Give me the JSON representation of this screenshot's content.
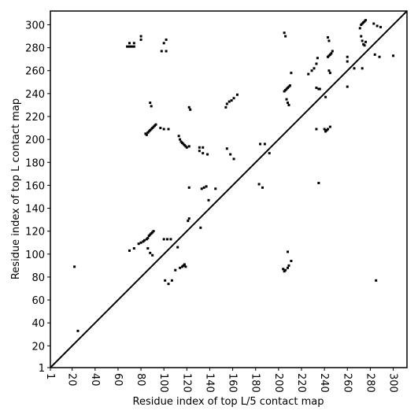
{
  "chart_data": {
    "type": "scatter",
    "x_label": "Residue index of top L/5 contact map",
    "y_label": "Residue index of top L contact map",
    "xlim": [
      1,
      312
    ],
    "ylim": [
      1,
      312
    ],
    "xticks": [
      1,
      20,
      40,
      60,
      80,
      100,
      120,
      140,
      160,
      180,
      200,
      220,
      240,
      260,
      280,
      300
    ],
    "yticks": [
      1,
      20,
      40,
      60,
      80,
      100,
      120,
      140,
      160,
      180,
      200,
      220,
      240,
      260,
      280,
      300
    ],
    "series": [
      {
        "color": "#000000",
        "x": [
          22,
          25,
          68,
          70,
          72,
          74,
          70,
          74,
          80,
          80,
          100,
          102,
          98,
          102,
          88,
          89,
          84,
          85,
          86,
          87,
          88,
          89,
          90,
          91,
          92,
          93,
          97,
          100,
          104,
          113,
          114,
          115,
          116,
          117,
          118,
          119,
          120,
          122,
          122,
          123,
          131,
          131,
          134,
          134,
          138,
          154,
          155,
          157,
          159,
          161,
          164,
          155,
          158,
          161,
          133,
          135,
          137,
          145,
          122,
          139,
          121,
          122,
          132,
          70,
          74,
          78,
          80,
          82,
          83,
          85,
          86,
          87,
          88,
          89,
          90,
          91,
          86,
          88,
          90,
          100,
          103,
          106,
          101,
          104,
          107,
          112,
          110,
          114,
          116,
          117,
          118,
          119,
          183,
          186,
          184,
          188,
          192,
          205,
          206,
          207,
          208,
          209,
          210,
          207,
          208,
          209,
          211,
          205,
          206,
          204,
          205,
          206,
          208,
          209,
          208,
          211,
          226,
          229,
          231,
          233,
          234,
          233,
          235,
          236,
          233,
          235,
          240,
          241,
          242,
          243,
          245,
          241,
          243,
          244,
          245,
          246,
          247,
          244,
          245,
          243,
          244,
          260,
          260,
          260,
          266,
          271,
          272,
          273,
          274,
          275,
          276,
          272,
          273,
          274,
          275,
          276,
          273,
          283,
          286,
          289,
          284,
          288,
          300,
          285
        ],
        "y": [
          89,
          33,
          281,
          281,
          281,
          281,
          284,
          284,
          287,
          290,
          284,
          287,
          277,
          277,
          232,
          229,
          205,
          204,
          206,
          207,
          208,
          209,
          210,
          211,
          212,
          213,
          210,
          209,
          209,
          203,
          200,
          198,
          197,
          196,
          195,
          194,
          193,
          194,
          228,
          226,
          193,
          190,
          188,
          193,
          187,
          228,
          231,
          233,
          234,
          236,
          239,
          192,
          187,
          183,
          157,
          158,
          159,
          157,
          158,
          147,
          129,
          131,
          123,
          103,
          105,
          109,
          110,
          111,
          112,
          113,
          114,
          116,
          117,
          118,
          119,
          120,
          105,
          101,
          99,
          113,
          113,
          113,
          77,
          74,
          77,
          106,
          86,
          88,
          89,
          90,
          91,
          89,
          161,
          158,
          196,
          196,
          188,
          242,
          243,
          244,
          245,
          246,
          247,
          235,
          232,
          230,
          258,
          293,
          290,
          87,
          85,
          86,
          88,
          90,
          102,
          94,
          257,
          260,
          262,
          266,
          271,
          245,
          244,
          244,
          209,
          162,
          209,
          207,
          208,
          209,
          211,
          237,
          272,
          273,
          274,
          275,
          277,
          260,
          258,
          289,
          286,
          268,
          272,
          246,
          262,
          297,
          300,
          301,
          302,
          303,
          304,
          290,
          286,
          283,
          282,
          285,
          262,
          301,
          299,
          298,
          274,
          272,
          273,
          77
        ]
      }
    ]
  }
}
